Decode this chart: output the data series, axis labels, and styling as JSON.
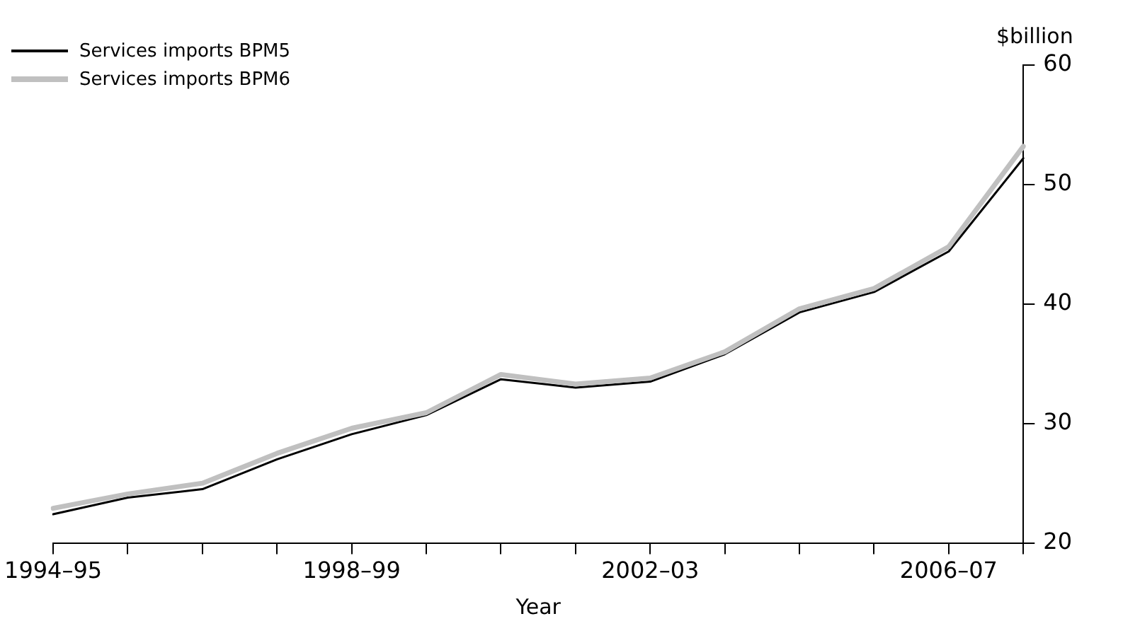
{
  "chart_data": {
    "type": "line",
    "xlabel": "Year",
    "ylabel": "$billion",
    "categories": [
      "1994–95",
      null,
      null,
      null,
      "1998–99",
      null,
      null,
      null,
      "2002–03",
      null,
      null,
      null,
      "2006–07",
      null
    ],
    "series": [
      {
        "name": "Services imports BPM5",
        "color": "#000000",
        "values": [
          22.4,
          23.8,
          24.5,
          27.0,
          29.1,
          30.7,
          33.7,
          33.0,
          33.5,
          35.8,
          39.3,
          41.0,
          44.4,
          52.2
        ]
      },
      {
        "name": "Services imports BPM6",
        "color": "#c0c0c0",
        "values": [
          22.9,
          24.1,
          25.0,
          27.5,
          29.6,
          30.9,
          34.1,
          33.3,
          33.8,
          36.0,
          39.6,
          41.3,
          44.8,
          53.2
        ]
      }
    ],
    "ylim": [
      20,
      60
    ],
    "yticks": [
      20,
      30,
      40,
      50,
      60
    ],
    "grid": false,
    "legend": "top left",
    "marker": "none",
    "line_style": "solid"
  }
}
